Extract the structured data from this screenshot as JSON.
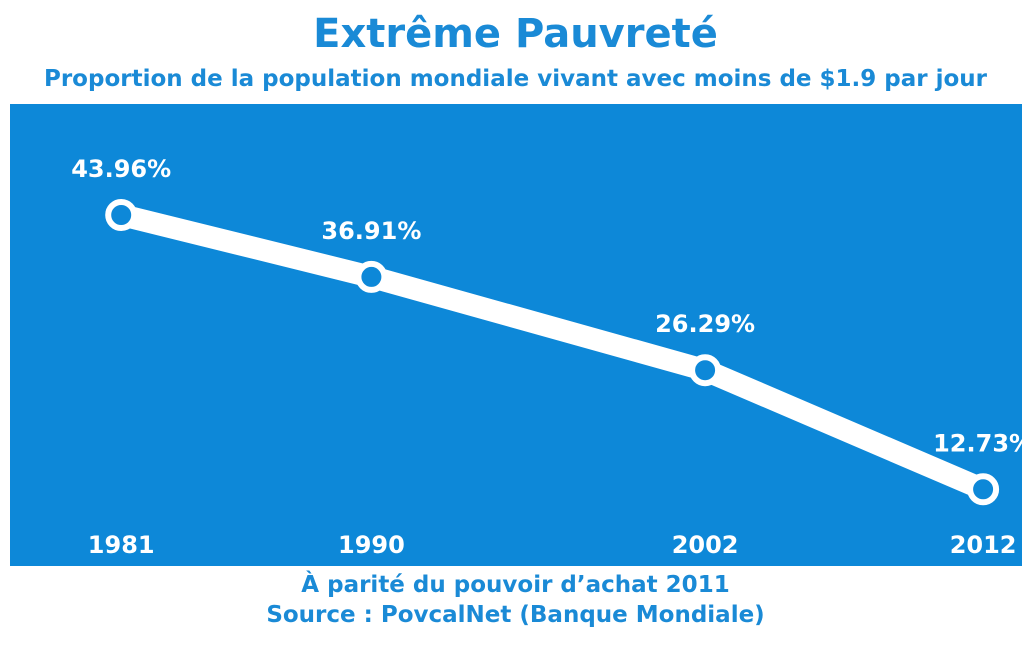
{
  "chart_data": {
    "type": "line",
    "title": "Extrême Pauvreté",
    "subtitle": "Proportion de la population mondiale vivant avec moins de $1.9 par jour",
    "x": [
      1981,
      1990,
      2002,
      2012
    ],
    "tick_labels": [
      "1981",
      "1990",
      "2002",
      "2012"
    ],
    "series": [
      {
        "values": [
          43.96,
          36.91,
          26.29,
          12.73
        ],
        "labels": [
          "43.96%",
          "36.91%",
          "26.29%",
          "12.73%"
        ]
      }
    ],
    "xlim": [
      1977,
      2013.4
    ],
    "ylim": [
      4,
      56.6
    ],
    "grid": false,
    "legend": "none",
    "notes": [
      "À parité du pouvoir d’achat 2011",
      "Source : PovcalNet (Banque Mondiale)"
    ]
  },
  "colors": {
    "panel": "#0d88d8",
    "text": "#1a8ad6",
    "line": "#ffffff"
  }
}
